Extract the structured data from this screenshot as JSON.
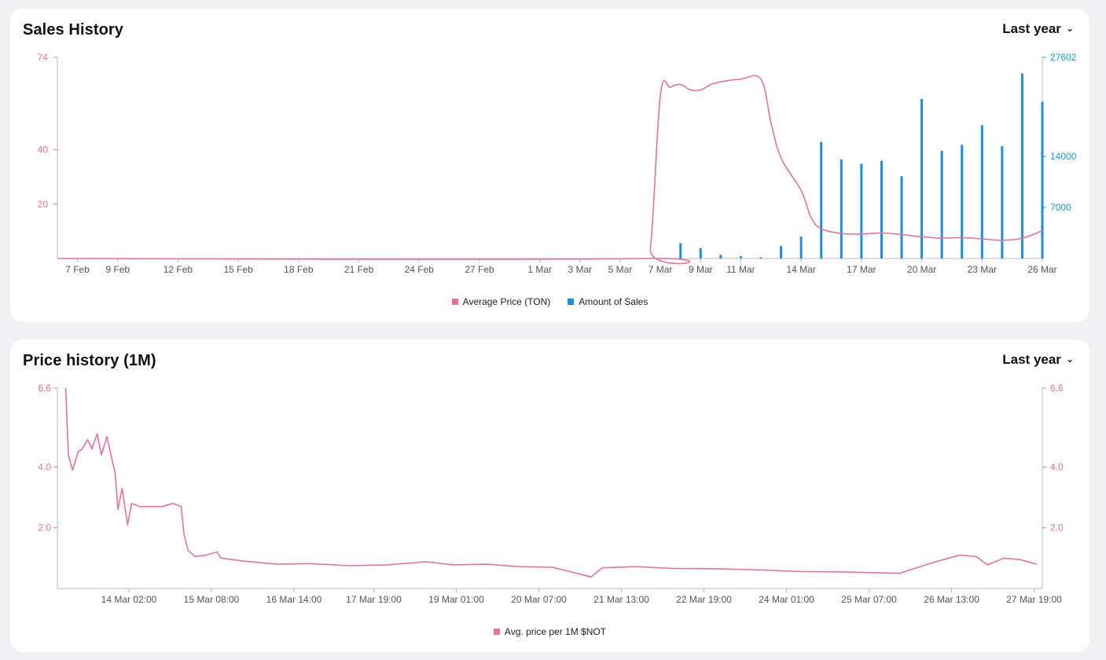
{
  "sales_card": {
    "title": "Sales History",
    "period": "Last year",
    "colors": {
      "price": "#e87396",
      "sales": "#1b8fdc",
      "axis_left": "#e87396",
      "axis_right": "#1b9bd8"
    }
  },
  "price_card": {
    "title": "Price history (1M)",
    "period": "Last year",
    "colors": {
      "price": "#e87396",
      "axis": "#e87396"
    }
  },
  "chart_data": [
    {
      "type": "bar",
      "title": "Sales History",
      "x_tick_labels": [
        "7 Feb",
        "9 Feb",
        "12 Feb",
        "15 Feb",
        "18 Feb",
        "21 Feb",
        "24 Feb",
        "27 Feb",
        "1 Mar",
        "3 Mar",
        "5 Mar",
        "7 Mar",
        "9 Mar",
        "11 Mar",
        "14 Mar",
        "17 Mar",
        "20 Mar",
        "23 Mar",
        "26 Mar"
      ],
      "x_range": [
        "2024-02-06",
        "2024-03-26"
      ],
      "y_left_ticks": [
        20,
        40,
        74
      ],
      "y_left_range": [
        0,
        74
      ],
      "y_right_ticks": [
        7000,
        14000,
        27602
      ],
      "y_right_range": [
        0,
        27602
      ],
      "grid": false,
      "legend_position": "bottom",
      "series": [
        {
          "name": "Average Price (TON)",
          "type": "line",
          "axis": "left",
          "points": [
            [
              "2024-02-06",
              0
            ],
            [
              "2024-03-06",
              0
            ],
            [
              "2024-03-06.5",
              4
            ],
            [
              "2024-03-07",
              60
            ],
            [
              "2024-03-07.5",
              63
            ],
            [
              "2024-03-08",
              64
            ],
            [
              "2024-03-08.5",
              62
            ],
            [
              "2024-03-09",
              62
            ],
            [
              "2024-03-09.5",
              64
            ],
            [
              "2024-03-10",
              65
            ],
            [
              "2024-03-11",
              66
            ],
            [
              "2024-03-12",
              66
            ],
            [
              "2024-03-12.5",
              50
            ],
            [
              "2024-03-13",
              37
            ],
            [
              "2024-03-14",
              25
            ],
            [
              "2024-03-14.5",
              15
            ],
            [
              "2024-03-15",
              11
            ],
            [
              "2024-03-16",
              9.2
            ],
            [
              "2024-03-17",
              9.0
            ],
            [
              "2024-03-18",
              9.4
            ],
            [
              "2024-03-19",
              8.8
            ],
            [
              "2024-03-20",
              8
            ],
            [
              "2024-03-21",
              7.5
            ],
            [
              "2024-03-22",
              7.7
            ],
            [
              "2024-03-23",
              7.2
            ],
            [
              "2024-03-24",
              6.7
            ],
            [
              "2024-03-25",
              7.5
            ],
            [
              "2024-03-26",
              10.2
            ]
          ]
        },
        {
          "name": "Amount of Sales",
          "type": "bar",
          "axis": "right",
          "points": [
            [
              "2024-03-08",
              2100
            ],
            [
              "2024-03-09",
              1400
            ],
            [
              "2024-03-10",
              500
            ],
            [
              "2024-03-11",
              300
            ],
            [
              "2024-03-12",
              150
            ],
            [
              "2024-03-13",
              1700
            ],
            [
              "2024-03-14",
              3000
            ],
            [
              "2024-03-15",
              16000
            ],
            [
              "2024-03-16",
              13600
            ],
            [
              "2024-03-17",
              13000
            ],
            [
              "2024-03-18",
              13400
            ],
            [
              "2024-03-19",
              11300
            ],
            [
              "2024-03-20",
              21900
            ],
            [
              "2024-03-21",
              14800
            ],
            [
              "2024-03-22",
              15600
            ],
            [
              "2024-03-23",
              18300
            ],
            [
              "2024-03-24",
              15400
            ],
            [
              "2024-03-25",
              25400
            ],
            [
              "2024-03-26",
              21500
            ]
          ]
        }
      ]
    },
    {
      "type": "line",
      "title": "Price history (1M)",
      "x_tick_labels": [
        "14 Mar 02:00",
        "15 Mar 08:00",
        "16 Mar 14:00",
        "17 Mar 19:00",
        "19 Mar 01:00",
        "20 Mar 07:00",
        "21 Mar 13:00",
        "22 Mar 19:00",
        "24 Mar 01:00",
        "25 Mar 07:00",
        "26 Mar 13:00",
        "27 Mar 19:00"
      ],
      "y_ticks": [
        2.0,
        4.0,
        6.6
      ],
      "y_range": [
        0,
        6.6
      ],
      "axes": "left and right (mirrored)",
      "grid": false,
      "legend_position": "bottom",
      "series": [
        {
          "name": "Avg. price per 1M $NOT",
          "points": [
            [
              "13 Mar 03:00",
              6.6
            ],
            [
              "13 Mar 04:00",
              4.4
            ],
            [
              "13 Mar 05:30",
              3.9
            ],
            [
              "13 Mar 07:30",
              4.5
            ],
            [
              "13 Mar 09:00",
              4.6
            ],
            [
              "13 Mar 11:00",
              4.9
            ],
            [
              "13 Mar 12:30",
              4.6
            ],
            [
              "13 Mar 14:30",
              5.1
            ],
            [
              "13 Mar 16:00",
              4.4
            ],
            [
              "13 Mar 18:00",
              5.0
            ],
            [
              "13 Mar 21:00",
              3.8
            ],
            [
              "13 Mar 22:00",
              2.6
            ],
            [
              "13 Mar 23:30",
              3.3
            ],
            [
              "14 Mar 01:30",
              2.1
            ],
            [
              "14 Mar 03:00",
              2.8
            ],
            [
              "14 Mar 06:00",
              2.7
            ],
            [
              "14 Mar 10:00",
              2.7
            ],
            [
              "14 Mar 14:00",
              2.7
            ],
            [
              "14 Mar 18:00",
              2.8
            ],
            [
              "14 Mar 21:00",
              2.7
            ],
            [
              "14 Mar 22:00",
              1.8
            ],
            [
              "14 Mar 23:30",
              1.25
            ],
            [
              "15 Mar 02:00",
              1.05
            ],
            [
              "15 Mar 06:00",
              1.1
            ],
            [
              "15 Mar 10:00",
              1.2
            ],
            [
              "15 Mar 11:30",
              1.0
            ],
            [
              "15 Mar 20:00",
              0.9
            ],
            [
              "16 Mar 08:00",
              0.8
            ],
            [
              "16 Mar 20:00",
              0.82
            ],
            [
              "17 Mar 10:00",
              0.75
            ],
            [
              "18 Mar 00:00",
              0.78
            ],
            [
              "18 Mar 14:00",
              0.88
            ],
            [
              "19 Mar 00:00",
              0.78
            ],
            [
              "19 Mar 12:00",
              0.8
            ],
            [
              "20 Mar 00:00",
              0.72
            ],
            [
              "20 Mar 12:00",
              0.7
            ],
            [
              "21 Mar 02:00",
              0.38
            ],
            [
              "21 Mar 06:00",
              0.68
            ],
            [
              "21 Mar 18:00",
              0.72
            ],
            [
              "22 Mar 08:00",
              0.66
            ],
            [
              "23 Mar 00:00",
              0.65
            ],
            [
              "23 Mar 12:00",
              0.62
            ],
            [
              "24 Mar 06:00",
              0.56
            ],
            [
              "24 Mar 20:00",
              0.55
            ],
            [
              "25 Mar 18:00",
              0.5
            ],
            [
              "26 Mar 06:00",
              0.85
            ],
            [
              "26 Mar 16:00",
              1.1
            ],
            [
              "26 Mar 22:00",
              1.05
            ],
            [
              "27 Mar 02:00",
              0.78
            ],
            [
              "27 Mar 08:00",
              1.0
            ],
            [
              "27 Mar 14:00",
              0.95
            ],
            [
              "27 Mar 20:00",
              0.8
            ]
          ]
        }
      ]
    }
  ]
}
